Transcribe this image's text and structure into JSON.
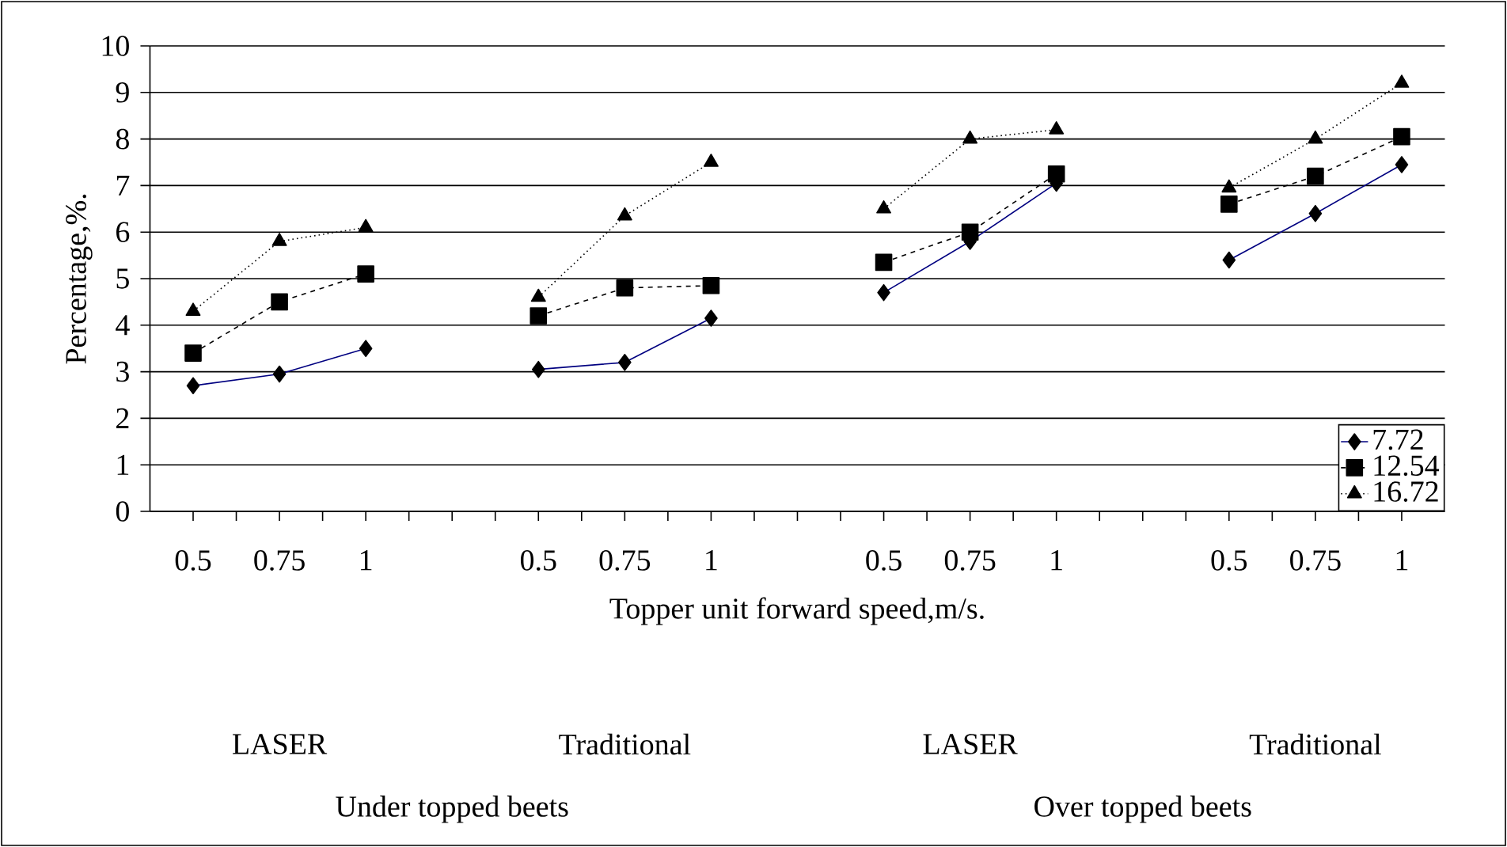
{
  "chart_data": {
    "type": "line",
    "xlabel": "Topper unit forward speed,m/s.",
    "ylabel": "Percentage,%.",
    "categories": [
      "0.5",
      "0.75",
      "1",
      null,
      "0.5",
      "0.75",
      "1",
      null,
      "0.5",
      "0.75",
      "1",
      null,
      "0.5",
      "0.75",
      "1"
    ],
    "series": [
      {
        "name": "7.72",
        "color": "#000080",
        "marker": "diamond",
        "line_style": "solid",
        "values": [
          2.7,
          2.95,
          3.5,
          null,
          3.05,
          3.2,
          4.15,
          null,
          4.7,
          5.8,
          7.05,
          null,
          5.4,
          6.4,
          7.45
        ]
      },
      {
        "name": "12.54",
        "color": "#000000",
        "marker": "square",
        "line_style": "dashed",
        "values": [
          3.4,
          4.5,
          5.1,
          null,
          4.2,
          4.8,
          4.85,
          null,
          5.35,
          6.0,
          7.25,
          null,
          6.6,
          7.2,
          8.05
        ]
      },
      {
        "name": "16.72",
        "color": "#000000",
        "marker": "triangle",
        "line_style": "dotted",
        "values": [
          4.3,
          5.8,
          6.1,
          null,
          4.6,
          6.35,
          7.5,
          null,
          6.5,
          8.0,
          8.2,
          null,
          6.95,
          8.0,
          9.2
        ]
      }
    ],
    "ylim": [
      0,
      10
    ],
    "yticks": [
      0,
      1,
      2,
      3,
      4,
      5,
      6,
      7,
      8,
      9,
      10
    ],
    "grid": "y",
    "legend": "bottom right",
    "annotations": [
      "LASER",
      "Traditional",
      "LASER",
      "Traditional",
      "Under topped beets",
      "Over topped beets"
    ]
  }
}
